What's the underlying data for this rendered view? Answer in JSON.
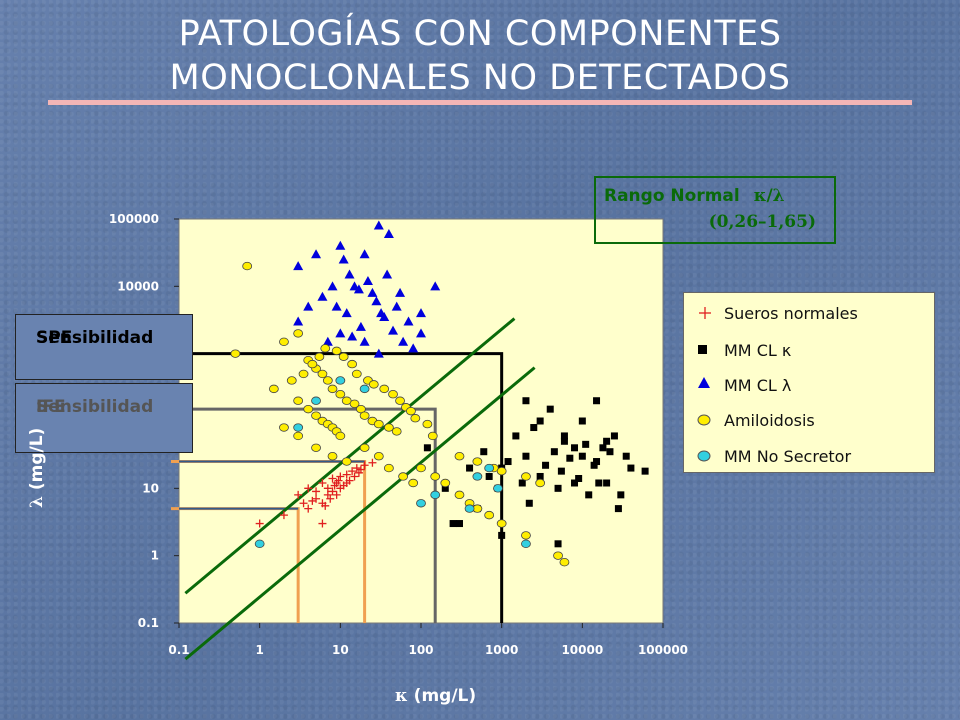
{
  "slide": {
    "title_line1": "PATOLOGÍAS CON COMPONENTES",
    "title_line2": "MONOCLONALES NO DETECTADOS"
  },
  "rango": {
    "label": "Rango Normal",
    "ratio": "κ/λ",
    "range": "(0,26–1,65)"
  },
  "sensitivity": {
    "spe_line1": "Sensibilidad",
    "spe_line2": "SPE",
    "ife_line1": "Sensibilidad",
    "ife_line2": "IFE"
  },
  "axes": {
    "x_label_symbol": "κ",
    "x_label_units": "(mg/L)",
    "y_label_symbol": "λ",
    "y_label_units": "(mg/L)"
  },
  "legend": [
    {
      "label": "Sueros normales",
      "symbol": "plus",
      "color": "#e02020"
    },
    {
      "label": "MM CL κ",
      "symbol": "square",
      "color": "#000000"
    },
    {
      "label": "MM CL λ",
      "symbol": "triangle",
      "color": "#0000dd"
    },
    {
      "label": "Amiloidosis",
      "symbol": "circle",
      "color": "#ffee00"
    },
    {
      "label": "MM No Secretor",
      "symbol": "circle",
      "color": "#33d0e0"
    }
  ],
  "chart_data": {
    "type": "scatter",
    "x_scale": "log",
    "y_scale": "log",
    "xlim": [
      0.1,
      100000
    ],
    "ylim": [
      0.1,
      100000
    ],
    "x_ticks": [
      "0.1",
      "1",
      "10",
      "100",
      "1000",
      "10000",
      "100000"
    ],
    "y_ticks": [
      "0.1",
      "1",
      "10",
      "100",
      "1000",
      "10000",
      "100000"
    ],
    "xlabel": "κ (mg/L)",
    "ylabel": "λ (mg/L)",
    "grid": false,
    "legend_position": "right",
    "plot_background": "#ffffcc",
    "series": [
      {
        "name": "Sueros normales",
        "marker": "plus",
        "color": "#e02020",
        "points": [
          [
            3,
            8
          ],
          [
            4,
            10
          ],
          [
            5,
            9
          ],
          [
            6,
            12
          ],
          [
            7,
            10
          ],
          [
            8,
            14
          ],
          [
            9,
            12
          ],
          [
            10,
            15
          ],
          [
            12,
            16
          ],
          [
            14,
            18
          ],
          [
            16,
            20
          ],
          [
            18,
            19
          ],
          [
            20,
            22
          ],
          [
            5,
            7
          ],
          [
            6,
            6
          ],
          [
            7,
            8
          ],
          [
            8,
            9
          ],
          [
            9,
            8
          ],
          [
            10,
            10
          ],
          [
            11,
            11
          ],
          [
            12,
            12
          ],
          [
            13,
            13
          ],
          [
            3.5,
            6
          ],
          [
            4.5,
            6.5
          ],
          [
            6.5,
            5.5
          ],
          [
            7.5,
            7
          ],
          [
            8.5,
            11
          ],
          [
            9.5,
            13
          ],
          [
            15,
            15
          ],
          [
            17,
            17
          ],
          [
            25,
            24
          ],
          [
            4,
            5
          ],
          [
            1,
            3
          ],
          [
            2,
            4
          ],
          [
            6,
            3
          ]
        ]
      },
      {
        "name": "MM CL κ",
        "marker": "square",
        "color": "#000000",
        "points": [
          [
            1000,
            20
          ],
          [
            2000,
            30
          ],
          [
            3000,
            15
          ],
          [
            5000,
            10
          ],
          [
            8000,
            40
          ],
          [
            15000,
            25
          ],
          [
            20000,
            12
          ],
          [
            30000,
            8
          ],
          [
            40000,
            20
          ],
          [
            60000,
            18
          ],
          [
            600,
            35
          ],
          [
            1500,
            60
          ],
          [
            2500,
            80
          ],
          [
            4000,
            150
          ],
          [
            6000,
            50
          ],
          [
            10000,
            30
          ],
          [
            12000,
            8
          ],
          [
            18000,
            40
          ],
          [
            25000,
            60
          ],
          [
            700,
            15
          ],
          [
            900,
            10
          ],
          [
            1200,
            25
          ],
          [
            1800,
            12
          ],
          [
            2200,
            6
          ],
          [
            3500,
            22
          ],
          [
            4500,
            35
          ],
          [
            5500,
            18
          ],
          [
            7000,
            28
          ],
          [
            9000,
            14
          ],
          [
            11000,
            45
          ],
          [
            14000,
            22
          ],
          [
            16000,
            12
          ],
          [
            22000,
            35
          ],
          [
            28000,
            5
          ],
          [
            35000,
            30
          ],
          [
            3000,
            100
          ],
          [
            2000,
            200
          ],
          [
            15000,
            200
          ],
          [
            20000,
            50
          ],
          [
            8000,
            12
          ],
          [
            120,
            40
          ],
          [
            200,
            10
          ],
          [
            300,
            3
          ],
          [
            400,
            20
          ],
          [
            500,
            5
          ],
          [
            1000,
            2
          ],
          [
            5000,
            1.5
          ],
          [
            10000,
            100
          ],
          [
            6000,
            60
          ],
          [
            250,
            3
          ]
        ]
      },
      {
        "name": "MM CL λ",
        "marker": "triangle",
        "color": "#0000dd",
        "points": [
          [
            3,
            20000
          ],
          [
            5,
            30000
          ],
          [
            10,
            40000
          ],
          [
            20,
            30000
          ],
          [
            30,
            80000
          ],
          [
            40,
            60000
          ],
          [
            8,
            10000
          ],
          [
            15,
            10000
          ],
          [
            25,
            8000
          ],
          [
            50,
            5000
          ],
          [
            70,
            3000
          ],
          [
            100,
            2000
          ],
          [
            3,
            3000
          ],
          [
            4,
            5000
          ],
          [
            6,
            7000
          ],
          [
            9,
            5000
          ],
          [
            12,
            4000
          ],
          [
            18,
            2500
          ],
          [
            22,
            12000
          ],
          [
            28,
            6000
          ],
          [
            35,
            3500
          ],
          [
            45,
            2200
          ],
          [
            60,
            1500
          ],
          [
            80,
            1200
          ],
          [
            7,
            1500
          ],
          [
            10,
            2000
          ],
          [
            14,
            1800
          ],
          [
            17,
            9000
          ],
          [
            32,
            4000
          ],
          [
            38,
            15000
          ],
          [
            55,
            8000
          ],
          [
            30,
            1000
          ],
          [
            20,
            1500
          ],
          [
            11,
            25000
          ],
          [
            13,
            15000
          ],
          [
            100,
            4000
          ],
          [
            150,
            10000
          ]
        ]
      },
      {
        "name": "Amiloidosis",
        "marker": "circle",
        "color": "#ffee00",
        "points": [
          [
            0.5,
            1000
          ],
          [
            2,
            1500
          ],
          [
            3,
            2000
          ],
          [
            4,
            800
          ],
          [
            5,
            600
          ],
          [
            6,
            500
          ],
          [
            7,
            400
          ],
          [
            8,
            300
          ],
          [
            10,
            250
          ],
          [
            12,
            200
          ],
          [
            15,
            180
          ],
          [
            18,
            150
          ],
          [
            20,
            120
          ],
          [
            25,
            100
          ],
          [
            30,
            90
          ],
          [
            40,
            80
          ],
          [
            50,
            70
          ],
          [
            3,
            200
          ],
          [
            4,
            150
          ],
          [
            5,
            120
          ],
          [
            6,
            100
          ],
          [
            7,
            90
          ],
          [
            8,
            80
          ],
          [
            9,
            70
          ],
          [
            10,
            60
          ],
          [
            2,
            80
          ],
          [
            3,
            60
          ],
          [
            5,
            40
          ],
          [
            8,
            30
          ],
          [
            12,
            25
          ],
          [
            20,
            40
          ],
          [
            30,
            30
          ],
          [
            40,
            20
          ],
          [
            60,
            15
          ],
          [
            80,
            12
          ],
          [
            100,
            20
          ],
          [
            150,
            15
          ],
          [
            200,
            12
          ],
          [
            300,
            8
          ],
          [
            400,
            6
          ],
          [
            500,
            5
          ],
          [
            700,
            4
          ],
          [
            1000,
            3
          ],
          [
            2000,
            2
          ],
          [
            5000,
            1
          ],
          [
            300,
            30
          ],
          [
            500,
            25
          ],
          [
            800,
            20
          ],
          [
            1000,
            18
          ],
          [
            2000,
            15
          ],
          [
            3000,
            12
          ],
          [
            6000,
            0.8
          ],
          [
            1.5,
            300
          ],
          [
            2.5,
            400
          ],
          [
            3.5,
            500
          ],
          [
            4.5,
            700
          ],
          [
            5.5,
            900
          ],
          [
            6.5,
            1200
          ],
          [
            9,
            1100
          ],
          [
            11,
            900
          ],
          [
            14,
            700
          ],
          [
            16,
            500
          ],
          [
            22,
            400
          ],
          [
            26,
            350
          ],
          [
            35,
            300
          ],
          [
            45,
            250
          ],
          [
            55,
            200
          ],
          [
            65,
            160
          ],
          [
            75,
            140
          ],
          [
            85,
            110
          ],
          [
            120,
            90
          ],
          [
            140,
            60
          ],
          [
            0.7,
            20000
          ]
        ]
      },
      {
        "name": "MM No Secretor",
        "marker": "circle",
        "color": "#33d0e0",
        "points": [
          [
            1,
            1.5
          ],
          [
            3,
            80
          ],
          [
            5,
            200
          ],
          [
            10,
            400
          ],
          [
            20,
            300
          ],
          [
            100,
            6
          ],
          [
            150,
            8
          ],
          [
            500,
            15
          ],
          [
            700,
            20
          ],
          [
            900,
            10
          ],
          [
            400,
            5
          ],
          [
            2000,
            1.5
          ]
        ]
      }
    ],
    "reference_lines": [
      {
        "label": "Rango Normal",
        "kind": "ratio_bound",
        "ratio": 0.26,
        "color": "#0a6a0a"
      },
      {
        "label": "Rango Normal",
        "kind": "ratio_bound",
        "ratio": 1.65,
        "color": "#0a6a0a"
      },
      {
        "label": "Sensibilidad SPE",
        "kind": "threshold_box",
        "x": 1000,
        "y": 1000,
        "color": "#000000"
      },
      {
        "label": "Sensibilidad IFE",
        "kind": "threshold_box",
        "x": 150,
        "y": 150,
        "color": "#666666"
      },
      {
        "kind": "threshold_box",
        "x": 3,
        "y": 5,
        "color": "#f0a050"
      },
      {
        "kind": "threshold_box",
        "x": 20,
        "y": 25,
        "color": "#f0a050"
      }
    ]
  }
}
